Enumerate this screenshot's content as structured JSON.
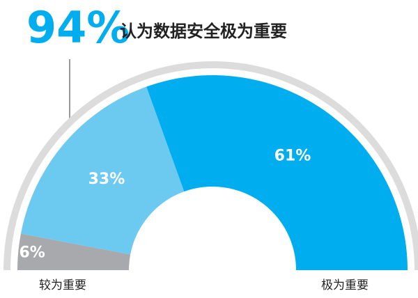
{
  "chart_data": {
    "type": "half-donut",
    "headline": "94%",
    "title": "认为数据安全极为重要",
    "values": [
      6,
      33,
      61
    ],
    "value_labels": [
      "6%",
      "33%",
      "61%"
    ],
    "colors": [
      "#a7a9ac",
      "#6cc9f0",
      "#00aeef"
    ],
    "start_label": "较为重要",
    "end_label": "极为重要"
  }
}
